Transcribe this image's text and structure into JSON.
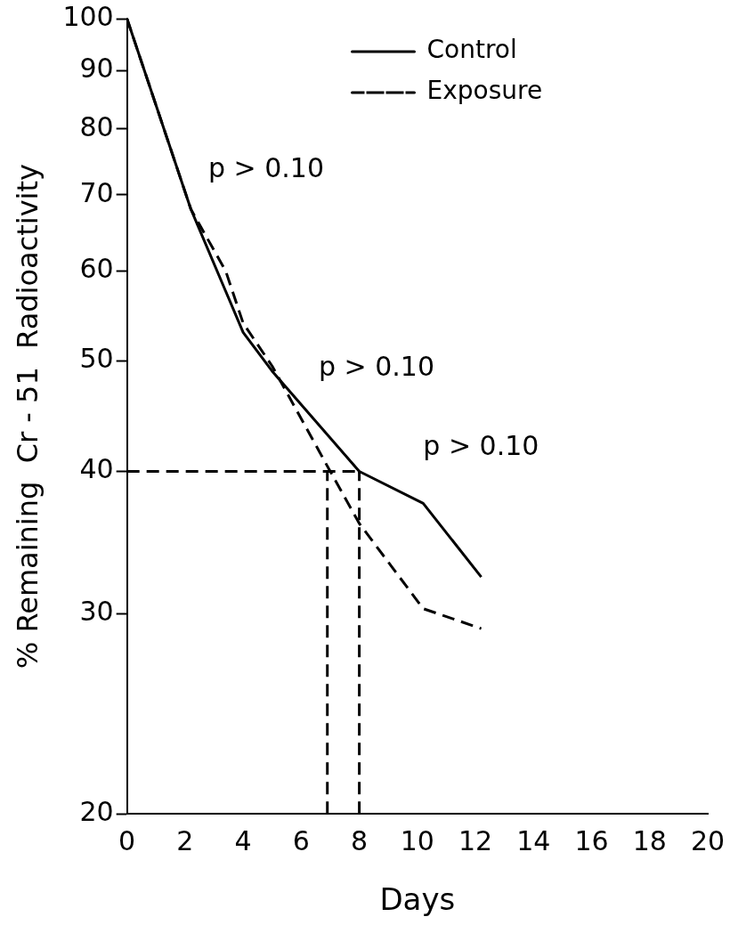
{
  "chart_data": {
    "type": "line",
    "xlabel": "Days",
    "ylabel": "% Remaining  Cr - 51  Radioactivity",
    "xlim": [
      0,
      20
    ],
    "xticks": [
      0,
      2,
      4,
      6,
      8,
      10,
      12,
      14,
      16,
      18,
      20
    ],
    "ylim": [
      20,
      100
    ],
    "yticks": [
      20,
      30,
      40,
      50,
      60,
      70,
      80,
      90,
      100
    ],
    "log": "y",
    "grid": false,
    "legend": "top right",
    "marker": "none",
    "series": [
      {
        "name": "Control",
        "color": "#000000",
        "line_style": "solid",
        "x": [
          0,
          2.2,
          4,
          5,
          8,
          10.2,
          12.2
        ],
        "values": [
          100,
          68,
          53,
          49,
          40,
          37.5,
          32.3
        ]
      },
      {
        "name": "Exposure",
        "color": "#000000",
        "line_style": "dashed",
        "x": [
          0,
          2.2,
          3.4,
          4,
          5,
          7,
          8,
          10.2,
          12.2
        ],
        "values": [
          100,
          68,
          60,
          54,
          49.5,
          40,
          36,
          30.3,
          29.1
        ]
      },
      {
        "color": "#000000",
        "line_style": "dashed",
        "x": [
          0,
          8
        ],
        "values": [
          40,
          40
        ]
      },
      {
        "color": "#000000",
        "line_style": "dashed",
        "x": [
          6.9,
          6.9
        ],
        "values": [
          20,
          40
        ]
      },
      {
        "color": "#000000",
        "line_style": "dashed",
        "x": [
          8,
          8
        ],
        "values": [
          20,
          40
        ]
      }
    ],
    "annotations": [
      "p > 0.10",
      "p > 0.10",
      "p > 0.10"
    ]
  }
}
